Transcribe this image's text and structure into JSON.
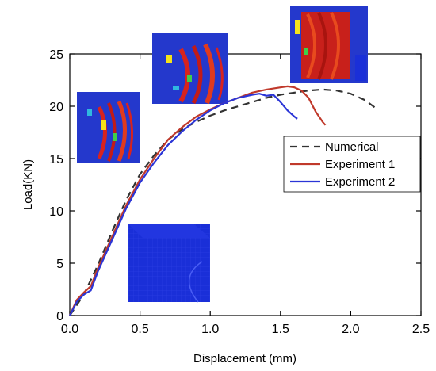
{
  "chart_data": {
    "type": "line",
    "xlabel": "Displacement (mm)",
    "ylabel": "Load(KN)",
    "xlim": [
      0,
      2.5
    ],
    "ylim": [
      0,
      25
    ],
    "x_ticks": [
      "0.0",
      "0.5",
      "1.0",
      "1.5",
      "2.0",
      "2.5"
    ],
    "y_ticks": [
      "0",
      "5",
      "10",
      "15",
      "20",
      "25"
    ],
    "legend_position": "right",
    "series": [
      {
        "name": "Numerical",
        "color": "#333333",
        "style": "dashed",
        "x": [
          0.0,
          0.1,
          0.2,
          0.3,
          0.4,
          0.5,
          0.6,
          0.7,
          0.8,
          0.9,
          1.0,
          1.1,
          1.2,
          1.3,
          1.4,
          1.5,
          1.6,
          1.7,
          1.8,
          1.9,
          2.0,
          2.1,
          2.17
        ],
        "y": [
          0.0,
          2.0,
          4.8,
          8.0,
          11.0,
          13.5,
          15.3,
          16.8,
          17.8,
          18.5,
          19.1,
          19.6,
          20.0,
          20.4,
          20.8,
          21.1,
          21.3,
          21.5,
          21.6,
          21.5,
          21.2,
          20.6,
          19.9
        ]
      },
      {
        "name": "Experiment 1",
        "color": "#c0392b",
        "style": "solid",
        "x": [
          0.0,
          0.05,
          0.1,
          0.15,
          0.2,
          0.3,
          0.4,
          0.5,
          0.6,
          0.7,
          0.8,
          0.9,
          1.0,
          1.1,
          1.2,
          1.3,
          1.4,
          1.5,
          1.55,
          1.6,
          1.65,
          1.7,
          1.75,
          1.8,
          1.82
        ],
        "y": [
          0.0,
          1.5,
          2.2,
          2.8,
          4.5,
          7.5,
          10.5,
          13.0,
          15.0,
          16.8,
          18.0,
          19.0,
          19.7,
          20.3,
          20.8,
          21.3,
          21.6,
          21.8,
          21.9,
          21.8,
          21.5,
          20.8,
          19.5,
          18.5,
          18.2
        ]
      },
      {
        "name": "Experiment 2",
        "color": "#2b35d6",
        "style": "solid",
        "x": [
          0.0,
          0.05,
          0.1,
          0.15,
          0.2,
          0.3,
          0.4,
          0.5,
          0.6,
          0.7,
          0.8,
          0.9,
          1.0,
          1.1,
          1.2,
          1.3,
          1.35,
          1.4,
          1.45,
          1.5,
          1.55,
          1.6,
          1.62
        ],
        "y": [
          0.0,
          1.3,
          2.0,
          2.4,
          4.2,
          7.2,
          10.2,
          12.7,
          14.6,
          16.3,
          17.6,
          18.7,
          19.6,
          20.3,
          20.8,
          21.1,
          21.2,
          21.0,
          21.1,
          20.4,
          19.6,
          19.0,
          18.8
        ]
      }
    ]
  },
  "insets": [
    {
      "name": "undeformed-mesh-inset",
      "base_color": "#1a2fd8"
    },
    {
      "name": "damage-contour-early-inset",
      "base_color": "#2438cc"
    },
    {
      "name": "damage-contour-mid-inset",
      "base_color": "#2438cc"
    },
    {
      "name": "damage-contour-peak-inset",
      "base_color": "#2438cc"
    }
  ]
}
